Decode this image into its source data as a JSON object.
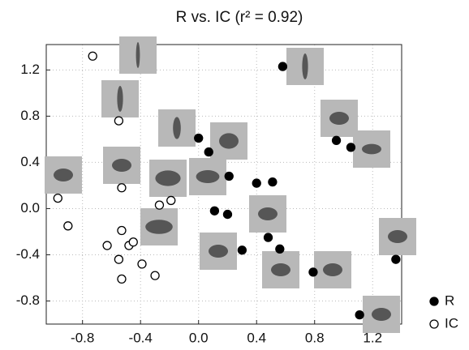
{
  "chart_data": {
    "type": "scatter",
    "title": "R vs. IC (r² = 0.92)",
    "xlim": [
      -1.05,
      1.4
    ],
    "ylim": [
      -1.0,
      1.42
    ],
    "xticks": [
      -0.8,
      -0.4,
      {
        "value": 0,
        "label": "0.0"
      },
      0.4,
      0.8,
      1.2
    ],
    "yticks": [
      -0.8,
      -0.4,
      {
        "value": 0,
        "label": "0.0"
      },
      0.4,
      0.8,
      1.2
    ],
    "grid": true,
    "legend": "right",
    "series": [
      {
        "name": "R",
        "color": "#000000",
        "marker": "filled",
        "x": [
          0.58,
          0.0,
          0.07,
          0.21,
          0.4,
          0.51,
          0.11,
          0.2,
          0.3,
          0.48,
          0.56,
          0.79,
          0.95,
          1.05,
          1.11,
          1.36
        ],
        "values": [
          1.23,
          0.61,
          0.49,
          0.28,
          0.22,
          0.23,
          -0.02,
          -0.05,
          -0.36,
          -0.25,
          -0.35,
          -0.55,
          0.59,
          0.53,
          -0.92,
          -0.44
        ]
      },
      {
        "name": "IC",
        "color": "#000000",
        "marker": "open",
        "x": [
          -0.73,
          -0.55,
          -0.53,
          -0.97,
          -0.9,
          -0.63,
          -0.53,
          -0.48,
          -0.45,
          -0.55,
          -0.53,
          -0.39,
          -0.3,
          -0.27,
          -0.19
        ],
        "values": [
          1.32,
          0.76,
          0.18,
          0.09,
          -0.15,
          -0.32,
          -0.19,
          -0.32,
          -0.29,
          -0.44,
          -0.61,
          -0.48,
          -0.58,
          0.03,
          0.07
        ]
      }
    ]
  }
}
